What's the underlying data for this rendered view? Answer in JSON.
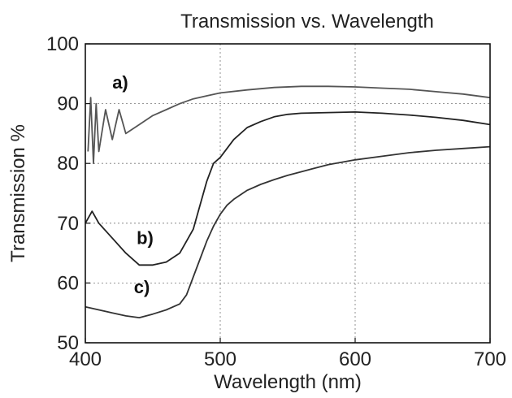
{
  "chart_data": {
    "type": "line",
    "title": "Transmission vs. Wavelength",
    "xlabel": "Wavelength (nm)",
    "ylabel": "Transmission %",
    "xlim": [
      400,
      700
    ],
    "ylim": [
      50,
      100
    ],
    "xticks": [
      400,
      500,
      600,
      700
    ],
    "yticks": [
      50,
      60,
      70,
      80,
      90,
      100
    ],
    "grid": true,
    "series": [
      {
        "name": "a)",
        "color": "#555555",
        "x": [
          402,
          404,
          406,
          408,
          410,
          415,
          420,
          425,
          430,
          440,
          450,
          460,
          470,
          480,
          490,
          500,
          520,
          540,
          560,
          580,
          600,
          620,
          640,
          660,
          680,
          700
        ],
        "y": [
          82,
          91,
          80,
          90,
          82,
          89,
          84,
          89,
          85,
          86.5,
          88,
          89,
          90,
          90.8,
          91.3,
          91.8,
          92.3,
          92.7,
          92.9,
          92.9,
          92.8,
          92.6,
          92.4,
          92.0,
          91.6,
          91.0
        ]
      },
      {
        "name": "b)",
        "color": "#222222",
        "x": [
          400,
          405,
          410,
          420,
          430,
          440,
          450,
          460,
          470,
          475,
          480,
          485,
          490,
          495,
          500,
          510,
          520,
          530,
          540,
          550,
          560,
          580,
          600,
          620,
          640,
          660,
          680,
          700
        ],
        "y": [
          70,
          72,
          70,
          67.5,
          65,
          63,
          63,
          63.5,
          65,
          67,
          69,
          73,
          77,
          80,
          81,
          84,
          86,
          87,
          87.8,
          88.2,
          88.4,
          88.5,
          88.6,
          88.4,
          88.1,
          87.7,
          87.2,
          86.5
        ]
      },
      {
        "name": "c)",
        "color": "#333333",
        "x": [
          400,
          410,
          420,
          430,
          440,
          450,
          460,
          470,
          475,
          480,
          485,
          490,
          495,
          500,
          505,
          510,
          520,
          530,
          540,
          550,
          560,
          580,
          600,
          620,
          640,
          660,
          680,
          700
        ],
        "y": [
          56,
          55.5,
          55,
          54.5,
          54.2,
          54.8,
          55.5,
          56.5,
          58,
          61,
          64,
          67,
          69.5,
          71.5,
          73,
          74,
          75.5,
          76.5,
          77.3,
          78,
          78.6,
          79.8,
          80.6,
          81.2,
          81.8,
          82.2,
          82.5,
          82.8
        ]
      }
    ],
    "series_label_positions": [
      {
        "label": "a)",
        "x": 420,
        "y": 92.5
      },
      {
        "label": "b)",
        "x": 438,
        "y": 66.5
      },
      {
        "label": "c)",
        "x": 436,
        "y": 58.3
      }
    ]
  }
}
